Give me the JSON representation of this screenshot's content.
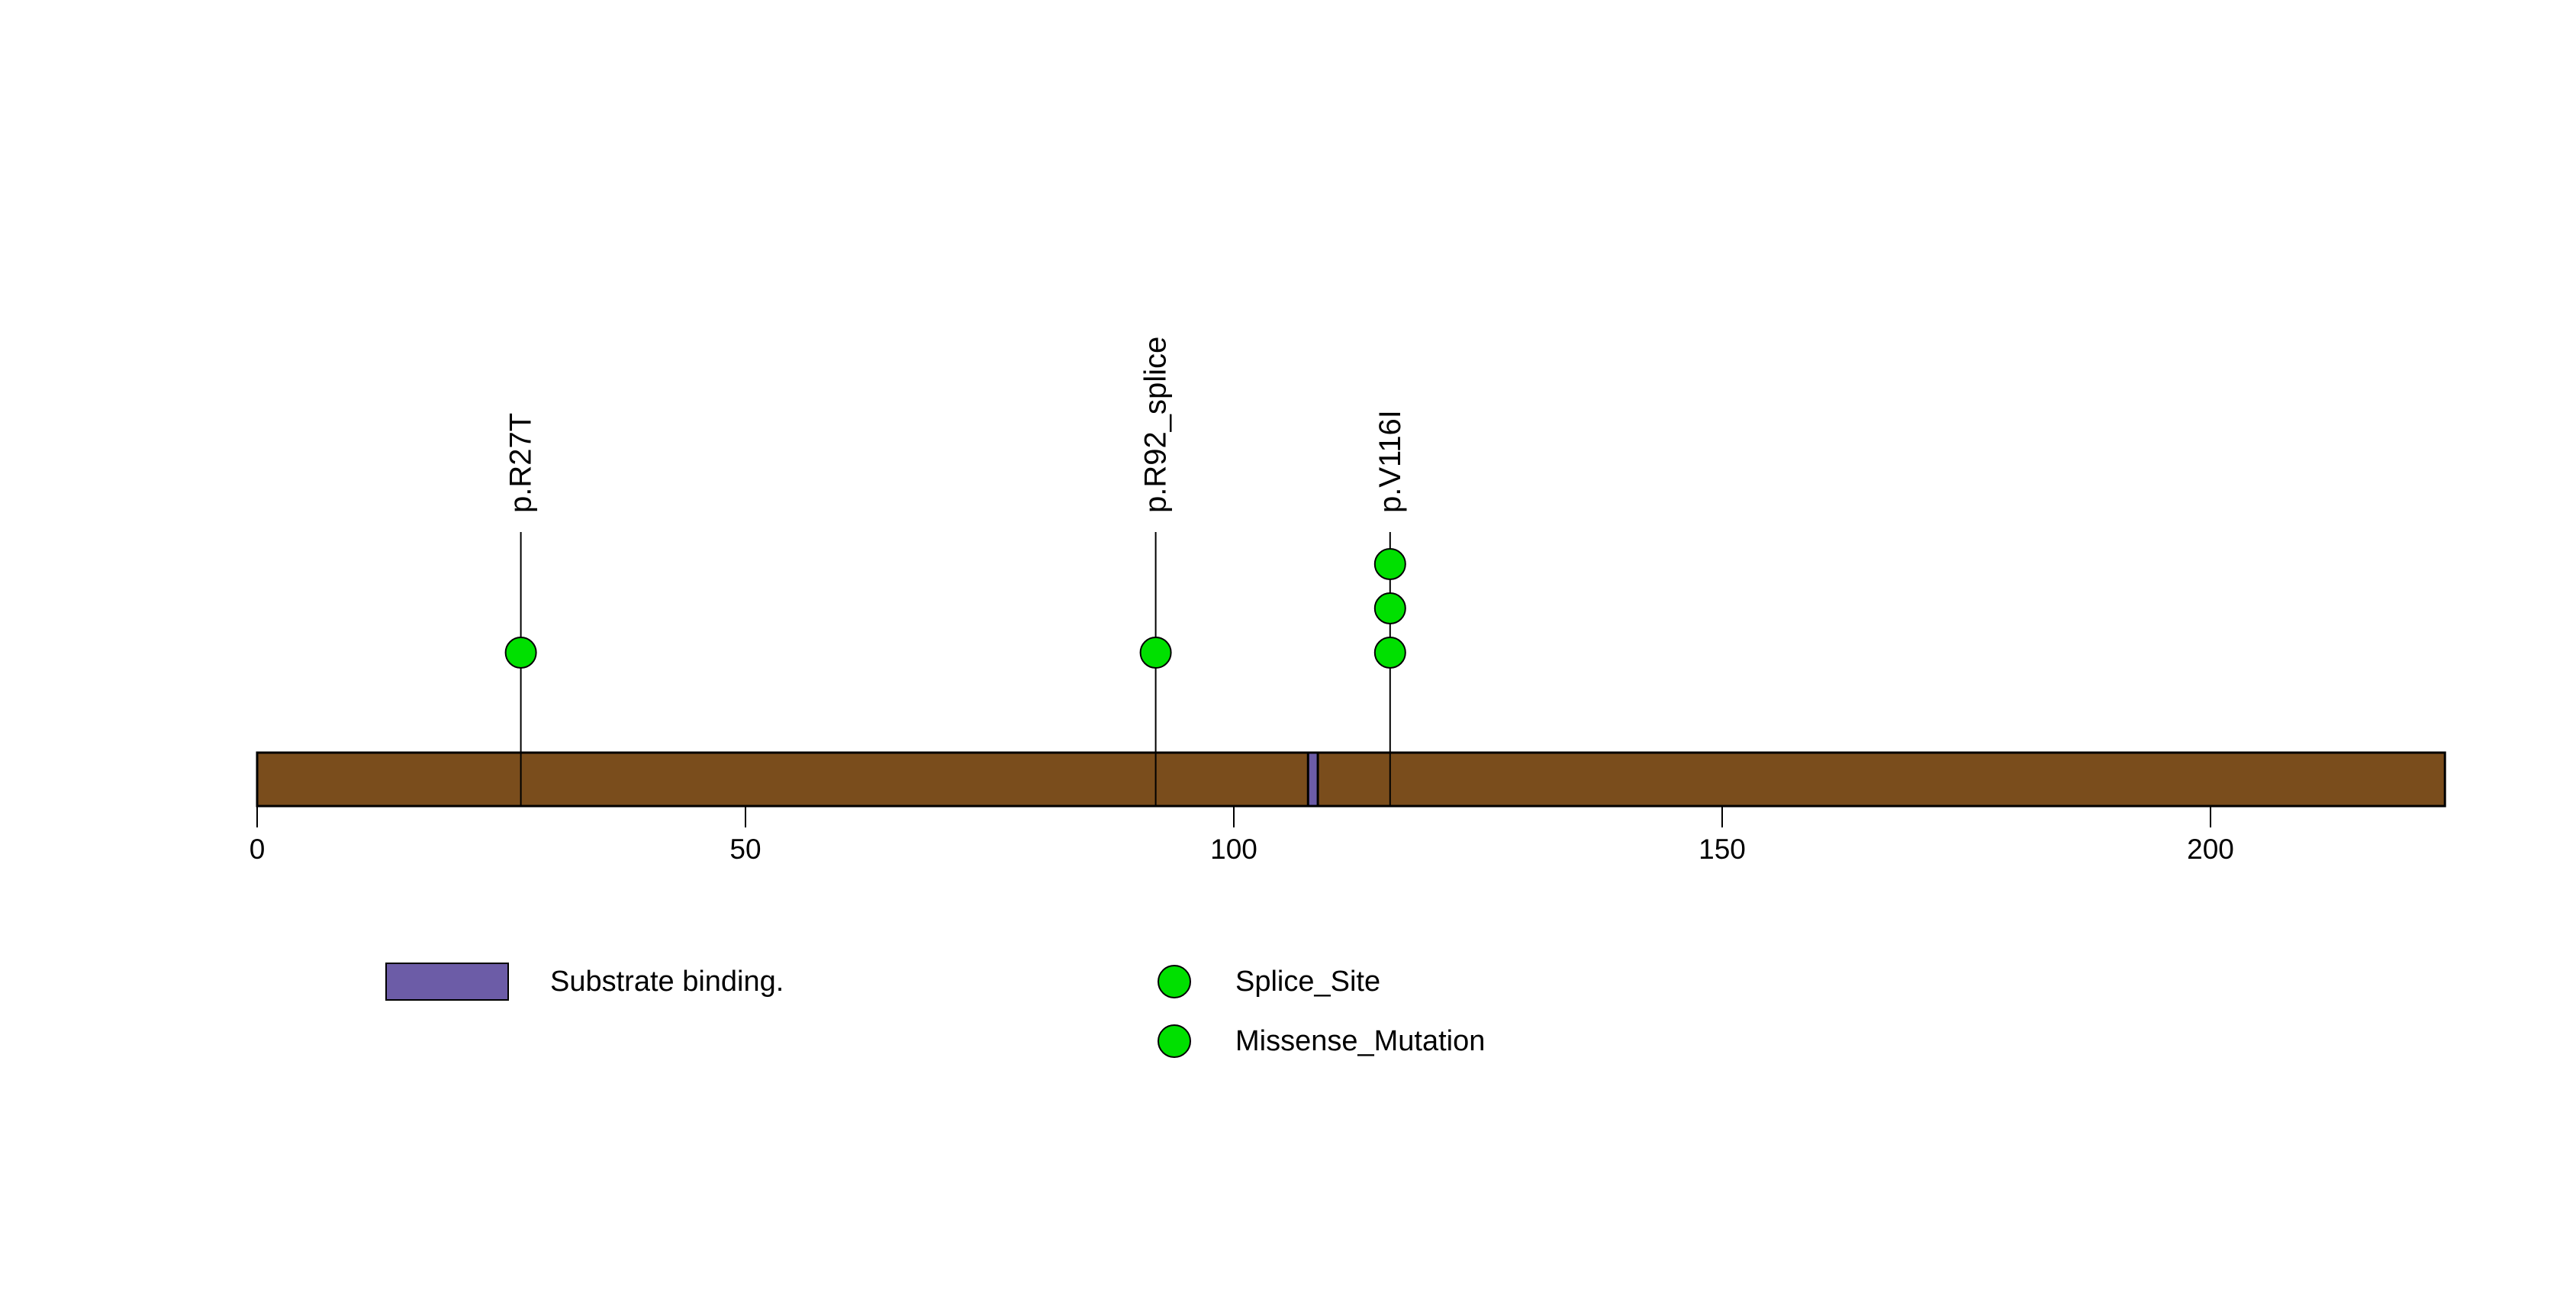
{
  "chart_data": {
    "type": "lollipop",
    "title": "",
    "xlabel": "",
    "ylabel": "",
    "x_axis": {
      "min": 0,
      "max": 224,
      "ticks": [
        0,
        50,
        100,
        150,
        200
      ]
    },
    "protein_length": 224,
    "mutations": [
      {
        "label": "p.R27T",
        "position": 27,
        "count": 1,
        "type": "Missense_Mutation"
      },
      {
        "label": "p.R92_splice",
        "position": 92,
        "count": 1,
        "type": "Splice_Site"
      },
      {
        "label": "p.V116I",
        "position": 116,
        "count": 3,
        "type": "Missense_Mutation"
      }
    ],
    "domains": [
      {
        "label": "Substrate binding.",
        "start": 107.6,
        "end": 108.6
      }
    ],
    "legend": [
      {
        "shape": "rect",
        "label": "Substrate binding."
      },
      {
        "shape": "circle",
        "label": "Splice_Site"
      },
      {
        "shape": "circle",
        "label": "Missense_Mutation"
      }
    ],
    "colors": {
      "protein_bar": "#7A4D1C",
      "domain": "#6C5CA7",
      "mutation_point": "#00E000",
      "stem": "#000000",
      "outline": "#000000"
    },
    "layout_hints": {
      "grid": false,
      "legend_position": "bottom"
    }
  }
}
